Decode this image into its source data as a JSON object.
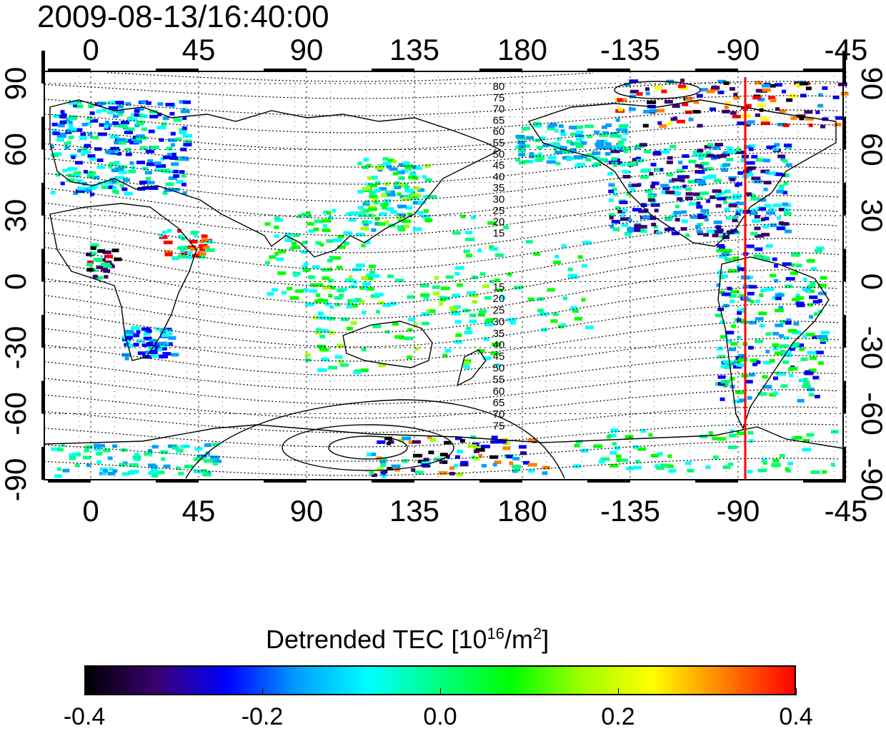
{
  "title": "2009-08-13/16:40:00",
  "map": {
    "lon_ticks": [
      "0",
      "45",
      "90",
      "135",
      "180",
      "-135",
      "-90",
      "-45"
    ],
    "lat_ticks": [
      "90",
      "60",
      "30",
      "0",
      "-30",
      "-60",
      "-90"
    ],
    "contour_labels_north": [
      "80",
      "75",
      "70",
      "65",
      "60",
      "55",
      "50",
      "45",
      "40",
      "35",
      "30",
      "25",
      "20",
      "15"
    ],
    "contour_labels_south": [
      "15",
      "20",
      "25",
      "30",
      "35",
      "40",
      "45",
      "50",
      "55",
      "60",
      "65",
      "70",
      "75"
    ],
    "marker_line": {
      "longitude": -72,
      "color": "#ff0000"
    },
    "colors": {
      "frame": "#000000",
      "grid": "#000000"
    }
  },
  "colorbar": {
    "title_main": "Detrended TEC  [10",
    "title_exp1": "16",
    "title_mid": "/m",
    "title_exp2": "2",
    "title_end": "]",
    "tick_labels": [
      "-0.4",
      "-0.2",
      "0.0",
      "0.2",
      "0.4"
    ],
    "range": [
      -0.4,
      0.4
    ],
    "colors": [
      "#000000",
      "#3a0070",
      "#0000ff",
      "#00a0ff",
      "#00ffff",
      "#00ff80",
      "#00ff00",
      "#a0ff00",
      "#ffff00",
      "#ff8000",
      "#ff0000"
    ]
  }
}
